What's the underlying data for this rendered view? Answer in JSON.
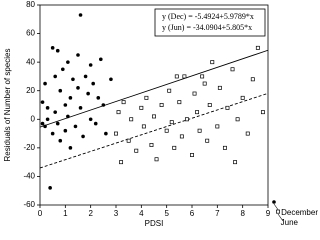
{
  "chart_data": {
    "type": "scatter",
    "y_label": "Residuals of Number of species",
    "x_label": "PDSI",
    "xlim": [
      0,
      9
    ],
    "xticks": [
      0,
      1,
      2,
      3,
      4,
      5,
      6,
      7,
      8,
      9
    ],
    "ylim": [
      -60,
      80
    ],
    "yticks": [
      -60,
      -40,
      -20,
      0,
      20,
      40,
      60,
      80
    ],
    "annotations": [
      "y (Dec) = -5.4924+5.9789*x",
      "y (Jun) = -34.0904+5.805*x"
    ],
    "series": [
      {
        "name": "December",
        "color": "#000000",
        "marker": "circle",
        "line_style": "solid",
        "fit": {
          "intercept": -5.4924,
          "slope": 5.9789
        },
        "x": [
          0.1,
          0.1,
          0.2,
          0.2,
          0.3,
          0.3,
          0.4,
          0.5,
          0.5,
          0.6,
          0.6,
          0.7,
          0.7,
          0.8,
          0.8,
          0.9,
          1.0,
          1.0,
          1.1,
          1.1,
          1.2,
          1.2,
          1.3,
          1.4,
          1.5,
          1.5,
          1.6,
          1.6,
          1.7,
          1.8,
          1.9,
          2.0,
          2.0,
          2.1,
          2.2,
          2.3,
          2.4,
          2.5,
          2.6,
          2.8
        ],
        "values": [
          12,
          -3,
          25,
          -5,
          8,
          0,
          -48,
          -10,
          50,
          30,
          5,
          -3,
          48,
          20,
          -15,
          35,
          10,
          -8,
          40,
          2,
          15,
          -20,
          28,
          -5,
          22,
          45,
          73,
          8,
          -12,
          30,
          18,
          0,
          38,
          25,
          -3,
          15,
          42,
          10,
          -10,
          28
        ]
      },
      {
        "name": "June",
        "color": "#000000",
        "marker": "square",
        "line_style": "dashed",
        "fit": {
          "intercept": -34.0904,
          "slope": 5.805
        },
        "x": [
          3.0,
          3.1,
          3.2,
          3.3,
          3.5,
          3.6,
          3.8,
          4.0,
          4.1,
          4.2,
          4.4,
          4.5,
          4.6,
          4.8,
          5.0,
          5.1,
          5.2,
          5.3,
          5.5,
          5.6,
          5.7,
          5.8,
          6.0,
          6.1,
          6.2,
          6.3,
          6.5,
          6.6,
          6.7,
          6.8,
          7.0,
          7.1,
          7.3,
          7.4,
          7.6,
          7.8,
          8.0,
          8.2,
          8.4,
          8.6,
          8.8,
          6.4,
          5.4,
          7.7
        ],
        "values": [
          -10,
          5,
          -30,
          12,
          -15,
          0,
          -22,
          8,
          -5,
          15,
          -18,
          2,
          -28,
          10,
          -8,
          20,
          -2,
          -20,
          12,
          -12,
          30,
          0,
          -25,
          18,
          5,
          -8,
          25,
          -15,
          10,
          40,
          -5,
          22,
          -20,
          8,
          35,
          0,
          15,
          -10,
          28,
          50,
          5,
          30,
          30,
          -30
        ]
      }
    ]
  }
}
